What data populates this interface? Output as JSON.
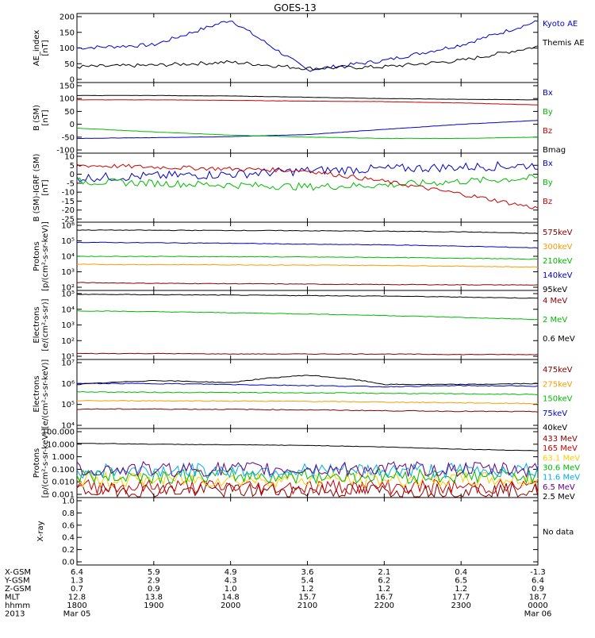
{
  "title": "GOES-13",
  "panels": [
    {
      "id": "ae",
      "ylabel_lines": [
        "AE_index",
        "[nT]"
      ],
      "ticks": [
        "200",
        "150",
        "100",
        "50",
        "0"
      ],
      "legend": [
        {
          "label": "Kyoto AE",
          "color": "#0000cc"
        },
        {
          "label": "Themis AE",
          "color": "#000000"
        }
      ]
    },
    {
      "id": "bsm",
      "ylabel_lines": [
        "B (SM)",
        "[nT]"
      ],
      "ticks": [
        "150",
        "100",
        "50",
        "0",
        "-50",
        "-100"
      ],
      "legend": [
        {
          "label": "Bx",
          "color": "#0000cc"
        },
        {
          "label": "By",
          "color": "#00bb00"
        },
        {
          "label": "Bz",
          "color": "#cc0000"
        },
        {
          "label": "Bmag",
          "color": "#000000"
        }
      ]
    },
    {
      "id": "bigrf",
      "ylabel_lines": [
        "B (SM)-IGRF (SM)",
        "[nT]"
      ],
      "ticks": [
        "10",
        "5",
        "0",
        "-5",
        "-10",
        "-15",
        "-20",
        "-25"
      ],
      "legend": [
        {
          "label": "Bx",
          "color": "#0000cc"
        },
        {
          "label": "By",
          "color": "#00bb00"
        },
        {
          "label": "Bz",
          "color": "#cc0000"
        }
      ]
    },
    {
      "id": "protons_kev",
      "ylabel_lines": [
        "Protons",
        "[p/(cm²-s-sr-keV)]"
      ],
      "ticks": [
        "10⁶",
        "10⁵",
        "10⁴",
        "10³",
        "10²"
      ],
      "legend": [
        {
          "label": "575keV",
          "color": "#880000"
        },
        {
          "label": "300keV",
          "color": "#ff9900"
        },
        {
          "label": "210keV",
          "color": "#00bb00"
        },
        {
          "label": "140keV",
          "color": "#0000cc"
        },
        {
          "label": "95keV",
          "color": "#000000"
        }
      ]
    },
    {
      "id": "electrons_mev",
      "ylabel_lines": [
        "Electrons",
        "[e/(cm²-s-sr)]"
      ],
      "ticks": [
        "10⁵",
        "10⁴",
        "10³",
        "10²",
        "10¹"
      ],
      "legend": [
        {
          "label": "4 MeV",
          "color": "#880000"
        },
        {
          "label": "2 MeV",
          "color": "#00bb00"
        },
        {
          "label": "0.6 MeV",
          "color": "#000000"
        }
      ]
    },
    {
      "id": "electrons_kev",
      "ylabel_lines": [
        "Electrons",
        "[e/(cm²-s-sr-keV)]"
      ],
      "ticks": [
        "10⁷",
        "10⁶",
        "10⁵",
        "10⁴"
      ],
      "legend": [
        {
          "label": "475keV",
          "color": "#880000"
        },
        {
          "label": "275keV",
          "color": "#ff9900"
        },
        {
          "label": "150keV",
          "color": "#00bb00"
        },
        {
          "label": "75keV",
          "color": "#0000cc"
        },
        {
          "label": "40keV",
          "color": "#000000"
        }
      ]
    },
    {
      "id": "protons_mev",
      "ylabel_lines": [
        "Protons",
        "[p/(cm²-s-sr-keV)]"
      ],
      "ticks": [
        "100.000",
        "10.000",
        "1.000",
        "0.100",
        "0.010",
        "0.001"
      ],
      "legend": [
        {
          "label": "433 MeV",
          "color": "#880000"
        },
        {
          "label": "165 MeV",
          "color": "#cc0000"
        },
        {
          "label": "63.1 MeV",
          "color": "#ffcc00"
        },
        {
          "label": "30.6 MeV",
          "color": "#00bb00"
        },
        {
          "label": "11.6 MeV",
          "color": "#00aaee"
        },
        {
          "label": "6.5 MeV",
          "color": "#660088"
        },
        {
          "label": "2.5 MeV",
          "color": "#000000"
        }
      ]
    },
    {
      "id": "xray",
      "ylabel_lines": [
        "X-ray"
      ],
      "ticks": [
        "1.0",
        "0.8",
        "0.6",
        "0.4",
        "0.2",
        "0.0"
      ],
      "legend": [
        {
          "label": "No data",
          "color": "#000000"
        }
      ]
    }
  ],
  "orbit": {
    "rows": [
      {
        "label": "X-GSM",
        "values": [
          "6.4",
          "5.9",
          "4.9",
          "3.6",
          "2.1",
          "0.4",
          "-1.3"
        ]
      },
      {
        "label": "Y-GSM",
        "values": [
          "1.3",
          "2.9",
          "4.3",
          "5.4",
          "6.2",
          "6.5",
          "6.4"
        ]
      },
      {
        "label": "Z-GSM",
        "values": [
          "0.7",
          "0.9",
          "1.0",
          "1.2",
          "1.2",
          "1.2",
          "0.9"
        ]
      },
      {
        "label": "MLT",
        "values": [
          "12.8",
          "13.8",
          "14.8",
          "15.7",
          "16.7",
          "17.7",
          "18.7"
        ]
      },
      {
        "label": "hhmm",
        "values": [
          "1800",
          "1900",
          "2000",
          "2100",
          "2200",
          "2300",
          "0000"
        ]
      },
      {
        "label": "2013",
        "values": [
          "Mar 05",
          "",
          "",
          "",
          "",
          "",
          "Mar 06"
        ]
      }
    ]
  },
  "chart_data": {
    "type": "line",
    "title": "GOES-13",
    "x": [
      "1800",
      "1900",
      "2000",
      "2100",
      "2200",
      "2300",
      "0000"
    ],
    "panels": [
      {
        "name": "AE_index",
        "ylim": [
          0,
          200
        ],
        "series": [
          {
            "name": "Kyoto AE",
            "values": [
              100,
              110,
              190,
              30,
              60,
              110,
              185
            ]
          },
          {
            "name": "Themis AE",
            "values": [
              40,
              45,
              55,
              35,
              40,
              60,
              105
            ]
          }
        ]
      },
      {
        "name": "B (SM)",
        "ylim": [
          -100,
          150
        ],
        "series": [
          {
            "name": "Bx",
            "values": [
              -55,
              -52,
              -48,
              -40,
              -20,
              0,
              15
            ]
          },
          {
            "name": "By",
            "values": [
              -15,
              -30,
              -42,
              -50,
              -55,
              -55,
              -50
            ]
          },
          {
            "name": "Bz",
            "values": [
              95,
              95,
              93,
              90,
              88,
              83,
              75
            ]
          },
          {
            "name": "Bmag",
            "values": [
              112,
              112,
              110,
              105,
              100,
              97,
              95
            ]
          }
        ]
      },
      {
        "name": "B (SM)-IGRF (SM)",
        "ylim": [
          -25,
          10
        ],
        "series": [
          {
            "name": "Bx",
            "values": [
              -2,
              -1,
              0,
              2,
              3,
              4,
              5
            ]
          },
          {
            "name": "By",
            "values": [
              -4,
              -5,
              -6,
              -7,
              -6,
              -4,
              -2
            ]
          },
          {
            "name": "Bz",
            "values": [
              5,
              4,
              3,
              2,
              -4,
              -11,
              -19
            ]
          }
        ]
      },
      {
        "name": "Protons",
        "ylim": [
          100,
          1000000
        ],
        "log": true,
        "series": [
          {
            "name": "575keV",
            "values": [
              200,
              180,
              170,
              160,
              150,
              145,
              140
            ]
          },
          {
            "name": "300keV",
            "values": [
              3000,
              2900,
              2800,
              2700,
              2600,
              2300,
              2000
            ]
          },
          {
            "name": "210keV",
            "values": [
              10000,
              9800,
              9500,
              9000,
              8500,
              7500,
              6500
            ]
          },
          {
            "name": "140keV",
            "values": [
              80000,
              75000,
              70000,
              60000,
              55000,
              45000,
              35000
            ]
          },
          {
            "name": "95keV",
            "values": [
              500000,
              480000,
              470000,
              450000,
              420000,
              380000,
              300000
            ]
          }
        ]
      },
      {
        "name": "Electrons",
        "ylim": [
          10,
          100000
        ],
        "log": true,
        "series": [
          {
            "name": "4 MeV",
            "values": [
              15,
              15,
              14,
              14,
              14,
              13,
              13
            ]
          },
          {
            "name": "2 MeV",
            "values": [
              8000,
              7000,
              6000,
              5000,
              4000,
              3000,
              2200
            ]
          },
          {
            "name": "0.6 MeV",
            "values": [
              90000,
              85000,
              80000,
              75000,
              70000,
              60000,
              50000
            ]
          }
        ]
      },
      {
        "name": "Electrons",
        "ylim": [
          10000,
          10000000
        ],
        "log": true,
        "series": [
          {
            "name": "475keV",
            "values": [
              60000,
              60000,
              58000,
              55000,
              50000,
              47000,
              45000
            ]
          },
          {
            "name": "275keV",
            "values": [
              150000,
              150000,
              145000,
              140000,
              130000,
              120000,
              110000
            ]
          },
          {
            "name": "150keV",
            "values": [
              400000,
              380000,
              370000,
              360000,
              340000,
              320000,
              300000
            ]
          },
          {
            "name": "75keV",
            "values": [
              1000000,
              1000000,
              900000,
              800000,
              700000,
              800000,
              750000
            ]
          },
          {
            "name": "40keV",
            "values": [
              900000,
              1400000,
              1100000,
              2500000,
              900000,
              900000,
              1000000
            ]
          }
        ]
      },
      {
        "name": "Protons",
        "ylim": [
          0.001,
          100
        ],
        "log": true,
        "series": [
          {
            "name": "433 MeV",
            "values": [
              0.002,
              0.002,
              0.002,
              0.002,
              0.002,
              0.002,
              0.002
            ]
          },
          {
            "name": "165 MeV",
            "values": [
              0.004,
              0.004,
              0.004,
              0.004,
              0.004,
              0.004,
              0.004
            ]
          },
          {
            "name": "63.1 MeV",
            "values": [
              0.015,
              0.015,
              0.015,
              0.015,
              0.015,
              0.015,
              0.015
            ]
          },
          {
            "name": "30.6 MeV",
            "values": [
              0.03,
              0.03,
              0.03,
              0.03,
              0.03,
              0.03,
              0.03
            ]
          },
          {
            "name": "11.6 MeV",
            "values": [
              0.08,
              0.08,
              0.08,
              0.08,
              0.08,
              0.08,
              0.08
            ]
          },
          {
            "name": "6.5 MeV",
            "values": [
              0.1,
              0.1,
              0.1,
              0.1,
              0.1,
              0.1,
              0.1
            ]
          },
          {
            "name": "2.5 MeV",
            "values": [
              12,
              10,
              9,
              8,
              6,
              4,
              3
            ]
          }
        ]
      },
      {
        "name": "X-ray",
        "ylim": [
          0,
          1
        ],
        "series": []
      }
    ]
  }
}
